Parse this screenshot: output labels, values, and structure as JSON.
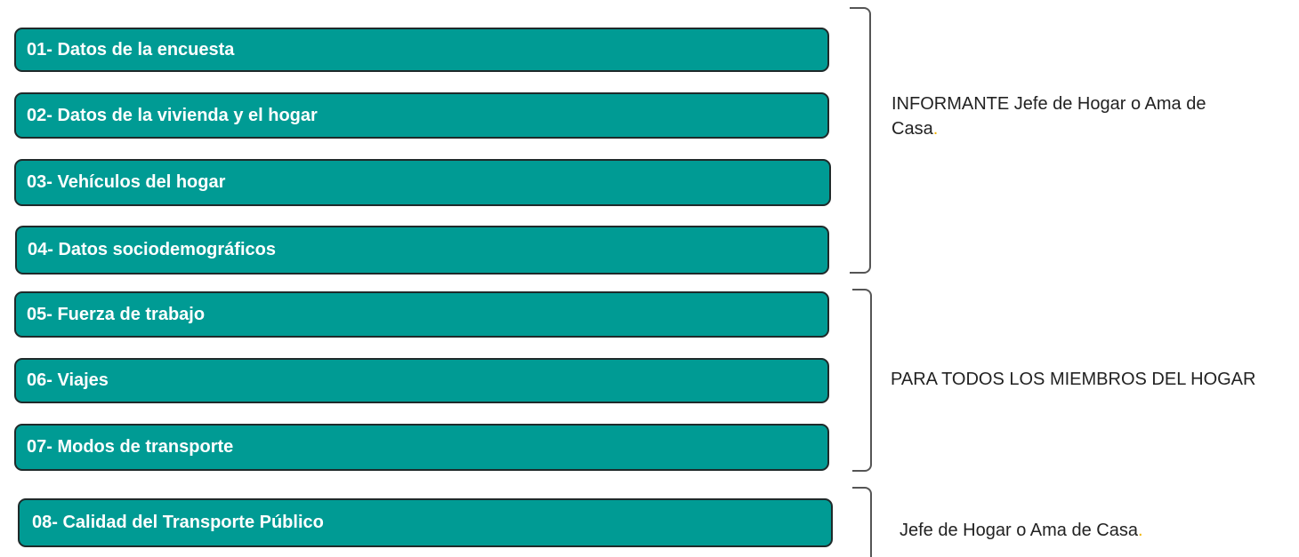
{
  "sections": [
    {
      "label": "01- Datos de la encuesta"
    },
    {
      "label": "02- Datos de la vivienda y el hogar"
    },
    {
      "label": "03- Vehículos del hogar"
    },
    {
      "label": "04- Datos sociodemográficos"
    },
    {
      "label": "05- Fuerza de trabajo"
    },
    {
      "label": "06- Viajes"
    },
    {
      "label": "07- Modos de transporte"
    },
    {
      "label": "08- Calidad del Transporte  Público"
    }
  ],
  "groups": [
    {
      "label": "INFORMANTE Jefe de Hogar o Ama de Casa",
      "suffix": "."
    },
    {
      "label": "PARA TODOS LOS MIEMBROS DEL HOGAR",
      "suffix": ""
    },
    {
      "label": "Jefe de Hogar o Ama de Casa",
      "suffix": "."
    }
  ],
  "colors": {
    "box_fill": "#009b94",
    "box_border": "#1f2a2a",
    "bracket": "#555555",
    "accent_period": "#f0b400"
  }
}
